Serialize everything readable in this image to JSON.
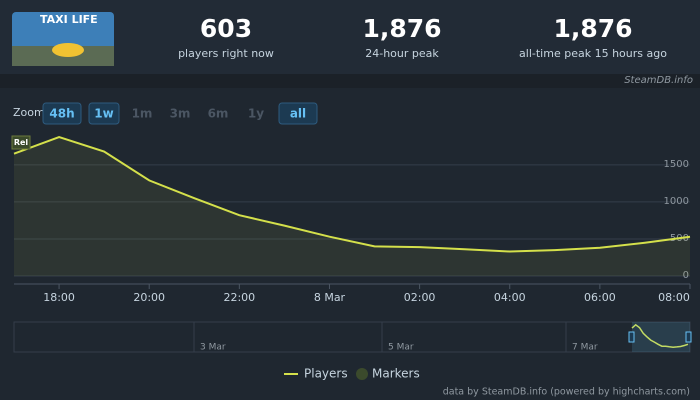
{
  "header": {
    "game_logo": "TAXI LIFE",
    "stats": [
      {
        "value": "603",
        "label": "players right now"
      },
      {
        "value": "1,876",
        "label": "24-hour peak"
      },
      {
        "value": "1,876",
        "label": "all-time peak 15 hours ago"
      }
    ],
    "source": "SteamDB.info"
  },
  "zoom": {
    "label": "Zoom",
    "buttons": [
      {
        "label": "48h",
        "state": "active"
      },
      {
        "label": "1w",
        "state": "active"
      },
      {
        "label": "1m",
        "state": "disabled"
      },
      {
        "label": "3m",
        "state": "disabled"
      },
      {
        "label": "6m",
        "state": "disabled"
      },
      {
        "label": "1y",
        "state": "disabled"
      },
      {
        "label": "all",
        "state": "active"
      }
    ]
  },
  "chart_data": {
    "type": "line",
    "categories": [
      null,
      "18:00",
      null,
      "20:00",
      null,
      "22:00",
      null,
      "8 Mar",
      null,
      "02:00",
      null,
      "04:00",
      null,
      "06:00",
      null,
      "08:00"
    ],
    "series": [
      {
        "name": "Players",
        "color": "#d4e04b",
        "values": [
          1650,
          1876,
          1680,
          1290,
          1050,
          820,
          680,
          530,
          400,
          390,
          360,
          330,
          350,
          380,
          450,
          530
        ]
      }
    ],
    "ylim": [
      0,
      1930
    ],
    "yticks": [
      0,
      500,
      1000,
      1500
    ],
    "grid": true,
    "flags": [
      "Rel"
    ],
    "marker_legend": {
      "name": "Markers",
      "color": "#3b4a2c"
    },
    "navigator_labels": [
      "3 Mar",
      "5 Mar",
      "7 Mar"
    ],
    "credits": "data by SteamDB.info (powered by highcharts.com)"
  }
}
